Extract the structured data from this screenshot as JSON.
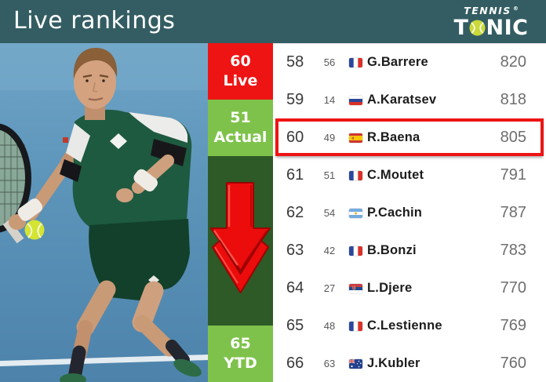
{
  "header": {
    "title": "Live rankings",
    "logo": {
      "line1": "TENNIS",
      "registered": "®",
      "line2_start": "T",
      "line2_end": "NIC"
    }
  },
  "status_panel": {
    "live": {
      "value": "60",
      "label": "Live"
    },
    "actual": {
      "value": "51",
      "label": "Actual"
    },
    "ytd": {
      "value": "65",
      "label": "YTD"
    },
    "trend_icon": "red-down-arrow"
  },
  "colors": {
    "header_bg": "#335d62",
    "live_bg": "#ee1414",
    "actual_bg": "#7ec24b",
    "ytd_bg": "#7ec24b",
    "panel_bg": "#2d5a26",
    "arrow_red": "#ec0c0c",
    "highlight_border": "#ee1414",
    "rank_text": "#3a3a3a",
    "prev_text": "#575757",
    "name_text": "#1c1c1c",
    "points_text": "#6e6e6e",
    "logo_ball": "#c9da3a"
  },
  "rankings": {
    "rows": [
      {
        "rank": "58",
        "prev": "56",
        "country": "FR",
        "player": "G.Barrere",
        "points": "820",
        "highlighted": false
      },
      {
        "rank": "59",
        "prev": "14",
        "country": "RU",
        "player": "A.Karatsev",
        "points": "818",
        "highlighted": false
      },
      {
        "rank": "60",
        "prev": "49",
        "country": "ES",
        "player": "R.Baena",
        "points": "805",
        "highlighted": true
      },
      {
        "rank": "61",
        "prev": "51",
        "country": "FR",
        "player": "C.Moutet",
        "points": "791",
        "highlighted": false
      },
      {
        "rank": "62",
        "prev": "54",
        "country": "AR",
        "player": "P.Cachin",
        "points": "787",
        "highlighted": false
      },
      {
        "rank": "63",
        "prev": "42",
        "country": "FR",
        "player": "B.Bonzi",
        "points": "783",
        "highlighted": false
      },
      {
        "rank": "64",
        "prev": "27",
        "country": "RS",
        "player": "L.Djere",
        "points": "770",
        "highlighted": false
      },
      {
        "rank": "65",
        "prev": "48",
        "country": "FR",
        "player": "C.Lestienne",
        "points": "769",
        "highlighted": false
      },
      {
        "rank": "66",
        "prev": "63",
        "country": "AU",
        "player": "J.Kubler",
        "points": "760",
        "highlighted": false
      }
    ]
  }
}
